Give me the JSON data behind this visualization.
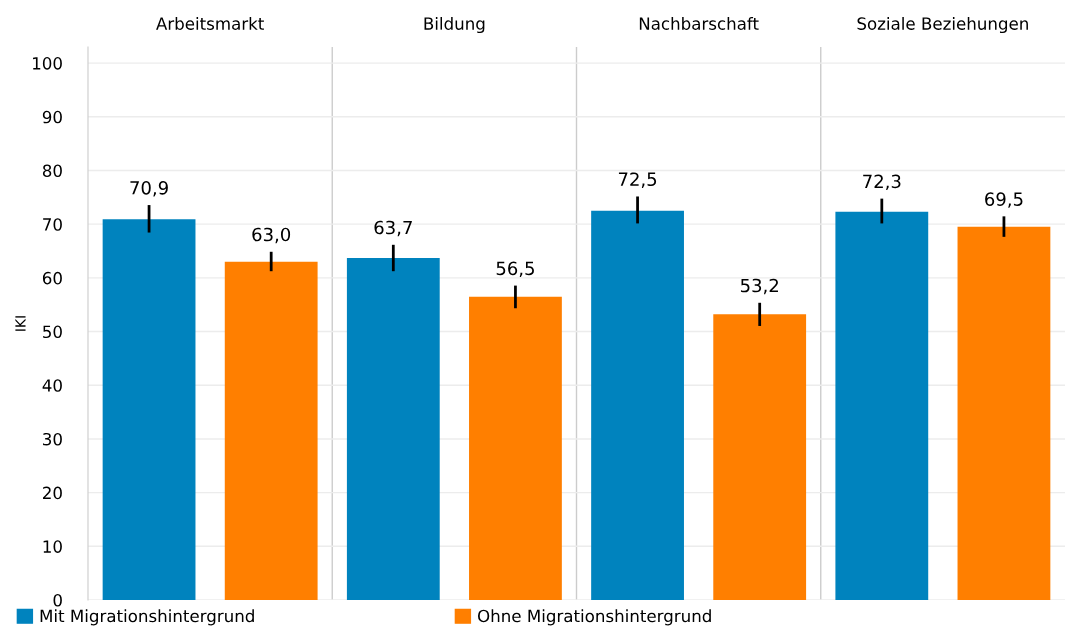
{
  "chart_data": {
    "type": "bar",
    "ylabel": "IKI",
    "categories": [
      "Arbeitsmarkt",
      "Bildung",
      "Nachbarschaft",
      "Soziale Beziehungen"
    ],
    "ylim": [
      0,
      103
    ],
    "yticks": [
      0,
      10,
      20,
      30,
      40,
      50,
      60,
      70,
      80,
      90,
      100
    ],
    "grid": "y",
    "legend": "bottom",
    "series": [
      {
        "name": "Mit Migrationshintergrund",
        "color": "#0083be",
        "values": [
          70.9,
          63.7,
          72.5,
          72.3
        ],
        "errors": [
          [
            68.7,
            73.3
          ],
          [
            61.5,
            65.9
          ],
          [
            70.4,
            74.9
          ],
          [
            70.4,
            74.5
          ]
        ],
        "value_labels": [
          "70,9",
          "63,7",
          "72,5",
          "72,3"
        ]
      },
      {
        "name": "Ohne Migrationshintergrund",
        "color": "#ff7f00",
        "values": [
          63.0,
          56.5,
          53.2,
          69.5
        ],
        "errors": [
          [
            61.5,
            64.6
          ],
          [
            54.6,
            58.3
          ],
          [
            51.3,
            55.1
          ],
          [
            67.9,
            71.2
          ]
        ],
        "value_labels": [
          "63,0",
          "56,5",
          "53,2",
          "69,5"
        ]
      }
    ]
  }
}
